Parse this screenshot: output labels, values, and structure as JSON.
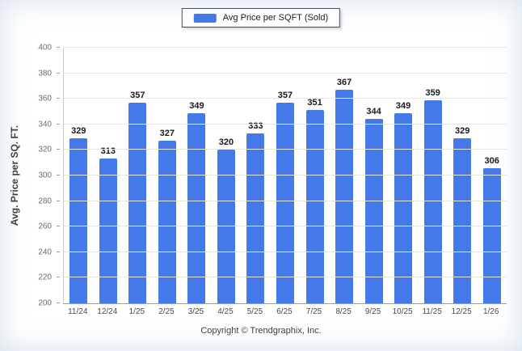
{
  "chart_data": {
    "type": "bar",
    "title": "",
    "legend_entries": [
      {
        "label": "Avg Price per SQFT (Sold)",
        "color": "#4379e8"
      }
    ],
    "categories": [
      "11/24",
      "12/24",
      "1/25",
      "2/25",
      "3/25",
      "4/25",
      "5/25",
      "6/25",
      "7/25",
      "8/25",
      "9/25",
      "10/25",
      "11/25",
      "12/25",
      "1/26"
    ],
    "values": [
      329,
      313,
      357,
      327,
      349,
      320,
      333,
      357,
      351,
      367,
      344,
      349,
      359,
      329,
      306
    ],
    "xlabel": "",
    "ylabel": "Avg. Price per SQ. FT.",
    "ylim": [
      200,
      400
    ],
    "ytick_step": 20,
    "grid": true,
    "legend_position": "top-center",
    "bar_color": "#4379e8"
  },
  "footer": {
    "copyright": "Copyright © Trendgraphix, Inc."
  }
}
